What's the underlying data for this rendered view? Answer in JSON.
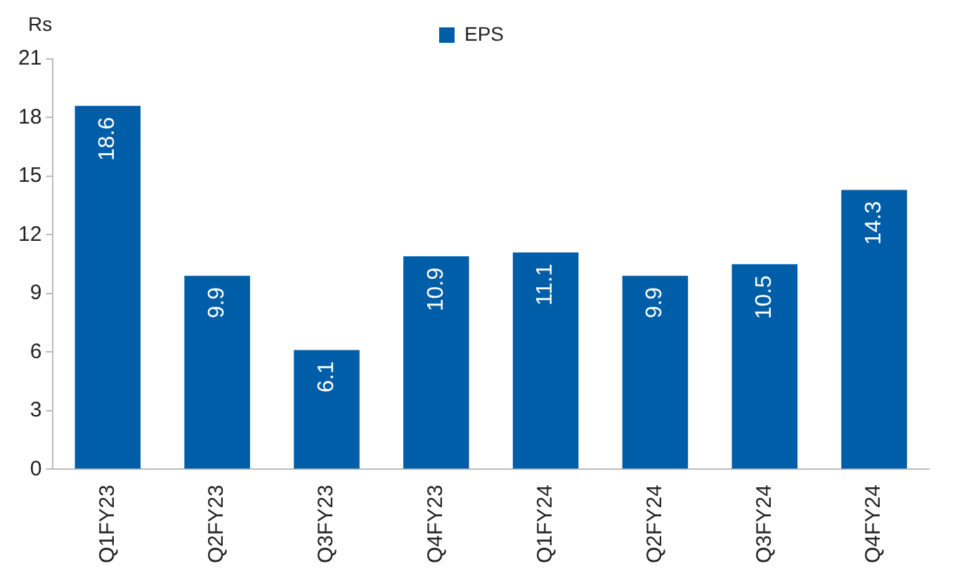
{
  "chart_data": {
    "type": "bar",
    "ylabel": "Rs",
    "categories": [
      "Q1FY23",
      "Q2FY23",
      "Q3FY23",
      "Q4FY23",
      "Q1FY24",
      "Q2FY24",
      "Q3FY24",
      "Q4FY24"
    ],
    "series": [
      {
        "name": "EPS",
        "color": "#005ea8",
        "values": [
          18.6,
          9.9,
          6.1,
          10.9,
          11.1,
          9.9,
          10.5,
          14.3
        ]
      }
    ],
    "ylim": [
      0,
      21
    ],
    "yticks": [
      0,
      3,
      6,
      9,
      12,
      15,
      18,
      21
    ],
    "grid": false,
    "legend": "top",
    "data_labels": true
  }
}
